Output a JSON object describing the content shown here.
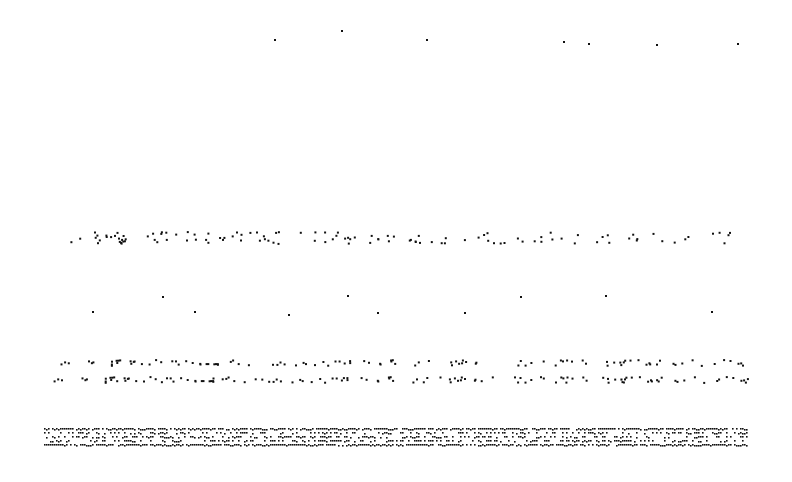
{
  "background_color": "#ffffff",
  "dot_color": "#111111",
  "bands": [
    {
      "name": "band-top-sparse",
      "seed": 11
    },
    {
      "name": "band-middle-row",
      "seed": 23
    },
    {
      "name": "band-sparse-row",
      "seed": 37
    },
    {
      "name": "band-double-row",
      "seed": 53
    },
    {
      "name": "band-dense-strip",
      "seed": 71
    }
  ]
}
